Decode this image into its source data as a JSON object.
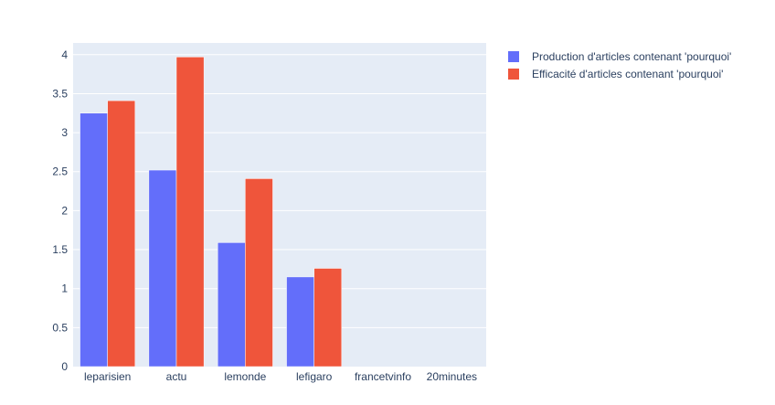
{
  "chart_data": {
    "type": "bar",
    "categories": [
      "leparisien",
      "actu",
      "lemonde",
      "lefigaro",
      "francetvinfo",
      "20minutes"
    ],
    "series": [
      {
        "name": "Production d'articles contenant 'pourquoi'",
        "color": "#636efa",
        "values": [
          3.25,
          2.52,
          1.59,
          1.15,
          0,
          0
        ]
      },
      {
        "name": "Efficacité d'articles contenant 'pourquoi'",
        "color": "#ef553b",
        "values": [
          3.41,
          3.97,
          2.41,
          1.26,
          0,
          0
        ]
      }
    ],
    "yticks": [
      "0",
      "0.5",
      "1",
      "1.5",
      "2",
      "2.5",
      "3",
      "3.5",
      "4"
    ],
    "ylim": [
      0,
      4.15
    ],
    "grid": true,
    "legend_position": "top-right",
    "plot_background": "#e5ecf6"
  }
}
